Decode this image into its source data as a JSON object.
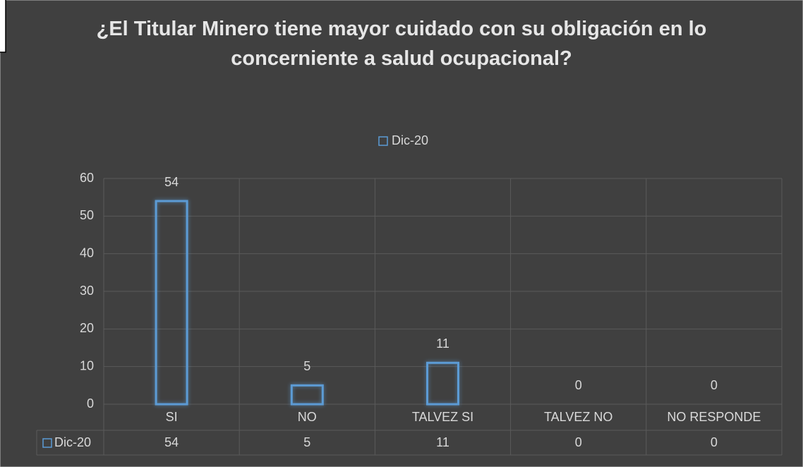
{
  "chart_data": {
    "type": "bar",
    "title": "¿El Titular Minero tiene mayor cuidado con su obligación en lo concerniente a salud ocupacional?",
    "categories": [
      "SI",
      "NO",
      "TALVEZ SI",
      "TALVEZ NO",
      "NO RESPONDE"
    ],
    "series": [
      {
        "name": "Dic-20",
        "color": "#5b9bd5",
        "values": [
          54,
          5,
          11,
          0,
          0
        ]
      }
    ],
    "ylim": [
      0,
      60
    ],
    "yticks": [
      0,
      10,
      20,
      30,
      40,
      50,
      60
    ],
    "grid": true,
    "legend": "top",
    "data_table": true
  }
}
